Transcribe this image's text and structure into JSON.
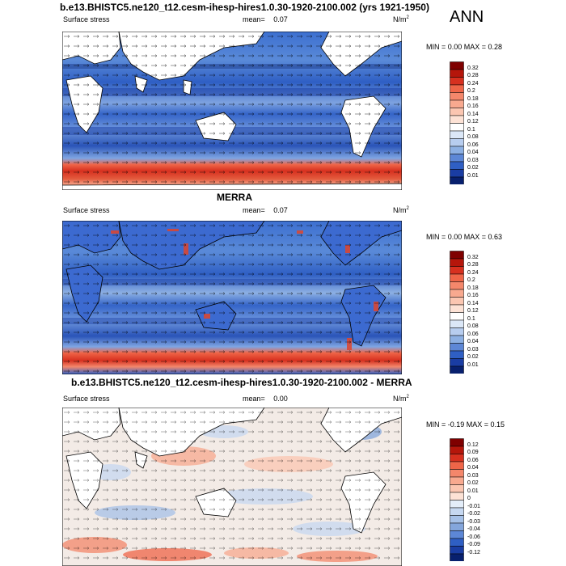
{
  "season": "ANN",
  "panels": [
    {
      "id": "model",
      "title": "b.e13.BHISTC5.ne120_t12.cesm-ihesp-hires1.0.30-1920-2100.002 (yrs 1921-1950)",
      "left_label": "Surface stress",
      "mean_label": "mean=",
      "mean_value": "0.07",
      "units": "N/m",
      "units_sup": "2",
      "min_max": "MIN =  0.00 MAX =  0.28",
      "colorbar": {
        "levels": [
          "0.32",
          "0.28",
          "0.24",
          "0.2",
          "0.18",
          "0.16",
          "0.14",
          "0.12",
          "0.1",
          "0.08",
          "0.06",
          "0.04",
          "0.03",
          "0.02",
          "0.01"
        ],
        "colors": [
          "#7f0000",
          "#b5160b",
          "#d7301f",
          "#ef6548",
          "#f4876b",
          "#f8a98f",
          "#fbc6b1",
          "#fde2d5",
          "#ffffff",
          "#dbe7f7",
          "#b7cdef",
          "#8db0e3",
          "#5d87d6",
          "#2f5fc4",
          "#1a3da3",
          "#08206e"
        ]
      }
    },
    {
      "id": "obs",
      "title": "MERRA",
      "left_label": "Surface stress",
      "mean_label": "mean=",
      "mean_value": "0.07",
      "units": "N/m",
      "units_sup": "2",
      "min_max": "MIN =  0.00 MAX =  0.63",
      "colorbar": {
        "levels": [
          "0.32",
          "0.28",
          "0.24",
          "0.2",
          "0.18",
          "0.16",
          "0.14",
          "0.12",
          "0.1",
          "0.08",
          "0.06",
          "0.04",
          "0.03",
          "0.02",
          "0.01"
        ],
        "colors": [
          "#7f0000",
          "#b5160b",
          "#d7301f",
          "#ef6548",
          "#f4876b",
          "#f8a98f",
          "#fbc6b1",
          "#fde2d5",
          "#ffffff",
          "#dbe7f7",
          "#b7cdef",
          "#8db0e3",
          "#5d87d6",
          "#2f5fc4",
          "#1a3da3",
          "#08206e"
        ]
      }
    },
    {
      "id": "diff",
      "title": "b.e13.BHISTC5.ne120_t12.cesm-ihesp-hires1.0.30-1920-2100.002 - MERRA",
      "left_label": "Surface stress",
      "mean_label": "mean=",
      "mean_value": "0.00",
      "units": "N/m",
      "units_sup": "2",
      "min_max": "MIN = -0.19 MAX =  0.15",
      "colorbar": {
        "levels": [
          "0.12",
          "0.09",
          "0.06",
          "0.04",
          "0.03",
          "0.02",
          "0.01",
          "0",
          "-0.01",
          "-0.02",
          "-0.03",
          "-0.04",
          "-0.06",
          "-0.09",
          "-0.12"
        ],
        "colors": [
          "#7f0000",
          "#b5160b",
          "#d7301f",
          "#ef6548",
          "#f4876b",
          "#f8a98f",
          "#fbc6b1",
          "#fde2d5",
          "#e3edf9",
          "#c6d8f1",
          "#a6c1e8",
          "#84a6dc",
          "#5d87d6",
          "#2f5fc4",
          "#1a3da3",
          "#08206e"
        ]
      }
    }
  ]
}
